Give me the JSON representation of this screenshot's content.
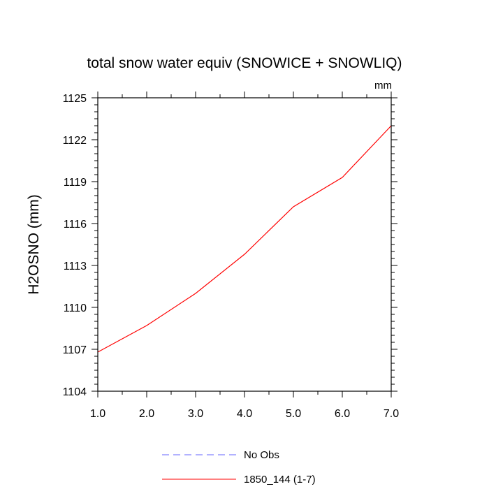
{
  "chart_data": {
    "type": "line",
    "title": "total snow water equiv (SNOWICE + SNOWLIQ)",
    "units": "mm",
    "ylabel": "H2OSNO  (mm)",
    "xlabel": "",
    "xlim": [
      1.0,
      7.0
    ],
    "ylim": [
      1104,
      1125
    ],
    "x_ticks": [
      1.0,
      2.0,
      3.0,
      4.0,
      5.0,
      6.0,
      7.0
    ],
    "x_tick_labels": [
      "1.0",
      "2.0",
      "3.0",
      "4.0",
      "5.0",
      "6.0",
      "7.0"
    ],
    "y_ticks": [
      1104,
      1107,
      1110,
      1113,
      1116,
      1119,
      1122,
      1125
    ],
    "y_tick_labels": [
      "1104",
      "1107",
      "1110",
      "1113",
      "1116",
      "1119",
      "1122",
      "1125"
    ],
    "grid": false,
    "legend_placement": "bottom-center",
    "series": [
      {
        "name": "No Obs",
        "color": "#6666ff",
        "dash": "dashed",
        "x": [],
        "values": []
      },
      {
        "name": "1850_144 (1-7)",
        "color": "#ff0000",
        "dash": "solid",
        "x": [
          1,
          2,
          3,
          4,
          5,
          6,
          7
        ],
        "values": [
          1106.8,
          1108.7,
          1111.0,
          1113.8,
          1117.2,
          1119.3,
          1123.0
        ]
      }
    ]
  }
}
